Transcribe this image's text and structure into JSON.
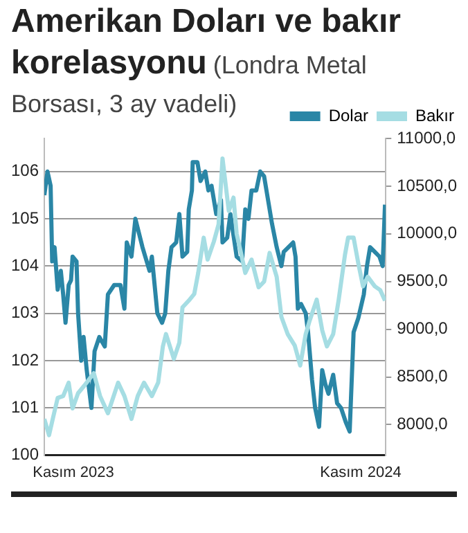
{
  "chart_data": {
    "type": "line",
    "title": "Amerikan Doları ve bakır korelasyonu",
    "subtitle": "(Londra Metal Borsası, 3 ay vadeli)",
    "xlim": [
      "2023-09-25",
      "2024-12-03"
    ],
    "xticks": [
      {
        "value": "2023-11-01",
        "label": "Kasım 2023"
      },
      {
        "value": "2024-11-01",
        "label": "Kasım 2024"
      }
    ],
    "ylim": [
      100,
      106.7
    ],
    "yticks": [
      100,
      101,
      102,
      103,
      104,
      105,
      106
    ],
    "y2lim": [
      7680,
      11000
    ],
    "y2ticks": [
      {
        "value": 8000,
        "label": "8000,0"
      },
      {
        "value": 8500,
        "label": "8500,0"
      },
      {
        "value": 9000,
        "label": "9000,0"
      },
      {
        "value": 9500,
        "label": "9500,0"
      },
      {
        "value": 10000,
        "label": "10000,0"
      },
      {
        "value": 10500,
        "label": "10500,0"
      },
      {
        "value": 11000,
        "label": "11000,0"
      }
    ],
    "grid": "y",
    "legend": "top right",
    "marker": "none",
    "line_style": "solid",
    "series": [
      {
        "name": "Bakır",
        "color": "#a5dde3",
        "axis": "y2",
        "x": [
          "2023-09-25",
          "2023-10-01",
          "2023-10-06",
          "2023-10-12",
          "2023-10-19",
          "2023-10-26",
          "2023-10-31",
          "2023-11-07",
          "2023-11-15",
          "2023-11-27",
          "2023-12-05",
          "2023-12-15",
          "2023-12-28",
          "2024-01-05",
          "2024-01-14",
          "2024-01-22",
          "2024-01-30",
          "2024-02-09",
          "2024-02-17",
          "2024-02-23",
          "2024-02-27",
          "2024-03-08",
          "2024-03-15",
          "2024-03-19",
          "2024-03-27",
          "2024-04-03",
          "2024-04-08",
          "2024-04-15",
          "2024-04-20",
          "2024-04-28",
          "2024-05-04",
          "2024-05-09",
          "2024-05-17",
          "2024-05-23",
          "2024-05-27",
          "2024-06-01",
          "2024-06-07",
          "2024-06-15",
          "2024-06-24",
          "2024-07-01",
          "2024-07-08",
          "2024-07-17",
          "2024-07-23",
          "2024-07-31",
          "2024-08-09",
          "2024-08-16",
          "2024-08-23",
          "2024-08-28",
          "2024-09-06",
          "2024-09-13",
          "2024-09-19",
          "2024-09-27",
          "2024-10-04",
          "2024-10-12",
          "2024-10-16",
          "2024-10-23",
          "2024-10-29",
          "2024-11-04",
          "2024-11-10",
          "2024-11-19",
          "2024-11-26",
          "2024-12-02"
        ],
        "values": [
          8060,
          7890,
          8070,
          8280,
          8300,
          8440,
          8170,
          8330,
          8410,
          8540,
          8300,
          8120,
          8440,
          8300,
          8060,
          8300,
          8440,
          8300,
          8440,
          8820,
          8950,
          8690,
          8860,
          9230,
          9300,
          9370,
          9590,
          9960,
          9730,
          9920,
          10100,
          10790,
          10240,
          10380,
          10000,
          9820,
          9590,
          9730,
          9440,
          9500,
          9800,
          9550,
          9130,
          8950,
          8830,
          8620,
          8950,
          9090,
          9310,
          8990,
          8820,
          8950,
          9310,
          9780,
          9960,
          9960,
          9690,
          9450,
          9550,
          9450,
          9410,
          9300
        ]
      },
      {
        "name": "Dolar",
        "color": "#2a86a6",
        "axis": "y",
        "x": [
          "2023-09-25",
          "2023-09-29",
          "2023-10-03",
          "2023-10-05",
          "2023-10-08",
          "2023-10-12",
          "2023-10-16",
          "2023-10-19",
          "2023-10-22",
          "2023-10-26",
          "2023-10-29",
          "2023-10-31",
          "2023-11-05",
          "2023-11-07",
          "2023-11-11",
          "2023-11-14",
          "2023-11-18",
          "2023-11-24",
          "2023-11-28",
          "2023-12-04",
          "2023-12-11",
          "2023-12-15",
          "2023-12-23",
          "2023-12-31",
          "2024-01-05",
          "2024-01-08",
          "2024-01-14",
          "2024-01-19",
          "2024-01-28",
          "2024-02-06",
          "2024-02-09",
          "2024-02-16",
          "2024-02-22",
          "2024-02-26",
          "2024-03-01",
          "2024-03-05",
          "2024-03-11",
          "2024-03-15",
          "2024-03-19",
          "2024-03-25",
          "2024-03-27",
          "2024-03-31",
          "2024-04-01",
          "2024-04-07",
          "2024-04-11",
          "2024-04-17",
          "2024-04-21",
          "2024-04-25",
          "2024-05-01",
          "2024-05-07",
          "2024-05-09",
          "2024-05-15",
          "2024-05-19",
          "2024-05-27",
          "2024-06-03",
          "2024-06-07",
          "2024-06-11",
          "2024-06-15",
          "2024-06-21",
          "2024-06-26",
          "2024-07-01",
          "2024-07-07",
          "2024-07-11",
          "2024-07-17",
          "2024-07-23",
          "2024-07-26",
          "2024-08-01",
          "2024-08-07",
          "2024-08-10",
          "2024-08-13",
          "2024-08-17",
          "2024-08-23",
          "2024-08-26",
          "2024-08-31",
          "2024-09-04",
          "2024-09-09",
          "2024-09-13",
          "2024-09-17",
          "2024-09-21",
          "2024-09-27",
          "2024-10-02",
          "2024-10-07",
          "2024-10-13",
          "2024-10-18",
          "2024-10-23",
          "2024-10-29",
          "2024-11-05",
          "2024-11-09",
          "2024-11-13",
          "2024-11-19",
          "2024-11-25",
          "2024-11-29",
          "2024-12-02"
        ],
        "values": [
          105.5,
          106,
          105.7,
          104.1,
          104.4,
          103.5,
          103.9,
          103.4,
          102.8,
          103.6,
          103.7,
          104.2,
          104.1,
          103,
          102,
          102.5,
          101.8,
          101,
          102.2,
          102.5,
          102.3,
          103.4,
          103.6,
          103.6,
          103.1,
          104.5,
          104.2,
          105,
          104.4,
          103.9,
          104.2,
          103,
          102.8,
          103,
          103.9,
          104.4,
          104.5,
          105.1,
          104.2,
          104.3,
          105.2,
          105.6,
          106.2,
          106.2,
          105.8,
          106,
          105.6,
          105.7,
          105.1,
          105.4,
          104.5,
          104.6,
          105.1,
          104.2,
          104.1,
          105.2,
          105,
          105.6,
          105.6,
          106,
          105.9,
          105.3,
          104.9,
          104.4,
          104,
          104.3,
          104.4,
          104.5,
          104.2,
          103.1,
          103.2,
          103,
          102.6,
          101.6,
          101,
          100.6,
          101.8,
          101.5,
          101.3,
          101.7,
          101.1,
          101,
          100.7,
          100.5,
          102.6,
          102.9,
          103.4,
          104,
          104.4,
          104.3,
          104.2,
          104,
          105.3
        ]
      }
    ]
  }
}
